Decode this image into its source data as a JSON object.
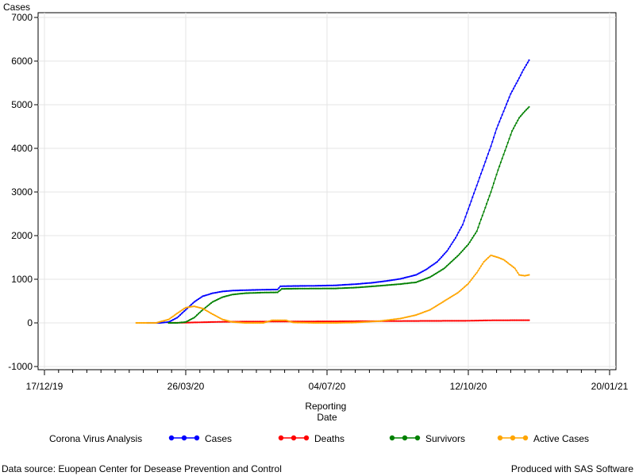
{
  "chart_data": {
    "type": "line",
    "ylabel": "Cases",
    "xlabel_lines": [
      "Reporting",
      "Date"
    ],
    "ylim": [
      -1000,
      7000
    ],
    "y_ticks": [
      -1000,
      0,
      1000,
      2000,
      3000,
      4000,
      5000,
      6000,
      7000
    ],
    "x_range": [
      "2019-12-17",
      "2021-01-20"
    ],
    "x_ticks": [
      {
        "date": "2019-12-17",
        "label": "17/12/19"
      },
      {
        "date": "2020-03-26",
        "label": "26/03/20"
      },
      {
        "date": "2020-07-04",
        "label": "04/07/20"
      },
      {
        "date": "2020-10-12",
        "label": "12/10/20"
      },
      {
        "date": "2021-01-20",
        "label": "20/01/21"
      }
    ],
    "grid": true,
    "legend_position": "bottom",
    "legend_title": "Corona Virus Analysis",
    "series": [
      {
        "name": "Cases",
        "color": "#0000ff",
        "points": [
          [
            "2020-02-28",
            0
          ],
          [
            "2020-03-08",
            0
          ],
          [
            "2020-03-14",
            20
          ],
          [
            "2020-03-20",
            120
          ],
          [
            "2020-03-26",
            300
          ],
          [
            "2020-04-01",
            480
          ],
          [
            "2020-04-07",
            610
          ],
          [
            "2020-04-14",
            680
          ],
          [
            "2020-04-21",
            720
          ],
          [
            "2020-04-28",
            740
          ],
          [
            "2020-05-07",
            750
          ],
          [
            "2020-05-20",
            760
          ],
          [
            "2020-05-30",
            765
          ],
          [
            "2020-06-01",
            840
          ],
          [
            "2020-06-10",
            845
          ],
          [
            "2020-06-25",
            850
          ],
          [
            "2020-07-10",
            860
          ],
          [
            "2020-07-25",
            890
          ],
          [
            "2020-08-05",
            920
          ],
          [
            "2020-08-15",
            960
          ],
          [
            "2020-08-25",
            1010
          ],
          [
            "2020-09-05",
            1100
          ],
          [
            "2020-09-12",
            1220
          ],
          [
            "2020-09-20",
            1400
          ],
          [
            "2020-09-27",
            1650
          ],
          [
            "2020-10-03",
            1950
          ],
          [
            "2020-10-08",
            2250
          ],
          [
            "2020-10-13",
            2700
          ],
          [
            "2020-10-18",
            3150
          ],
          [
            "2020-10-23",
            3600
          ],
          [
            "2020-10-28",
            4050
          ],
          [
            "2020-11-01",
            4450
          ],
          [
            "2020-11-06",
            4850
          ],
          [
            "2020-11-11",
            5250
          ],
          [
            "2020-11-16",
            5550
          ],
          [
            "2020-11-20",
            5800
          ],
          [
            "2020-11-24",
            6020
          ]
        ]
      },
      {
        "name": "Deaths",
        "color": "#ff0000",
        "points": [
          [
            "2020-03-14",
            0
          ],
          [
            "2020-03-26",
            5
          ],
          [
            "2020-04-07",
            15
          ],
          [
            "2020-04-21",
            25
          ],
          [
            "2020-05-10",
            30
          ],
          [
            "2020-06-10",
            32
          ],
          [
            "2020-07-10",
            35
          ],
          [
            "2020-08-10",
            40
          ],
          [
            "2020-09-10",
            45
          ],
          [
            "2020-10-10",
            48
          ],
          [
            "2020-10-30",
            60
          ],
          [
            "2020-11-24",
            62
          ]
        ]
      },
      {
        "name": "Survivors",
        "color": "#008000",
        "points": [
          [
            "2020-03-14",
            0
          ],
          [
            "2020-03-20",
            0
          ],
          [
            "2020-03-26",
            20
          ],
          [
            "2020-04-01",
            120
          ],
          [
            "2020-04-07",
            300
          ],
          [
            "2020-04-14",
            480
          ],
          [
            "2020-04-21",
            590
          ],
          [
            "2020-04-28",
            650
          ],
          [
            "2020-05-07",
            680
          ],
          [
            "2020-05-20",
            695
          ],
          [
            "2020-05-30",
            700
          ],
          [
            "2020-06-02",
            780
          ],
          [
            "2020-06-15",
            785
          ],
          [
            "2020-07-10",
            790
          ],
          [
            "2020-07-25",
            810
          ],
          [
            "2020-08-10",
            850
          ],
          [
            "2020-08-25",
            890
          ],
          [
            "2020-09-05",
            930
          ],
          [
            "2020-09-15",
            1050
          ],
          [
            "2020-09-25",
            1250
          ],
          [
            "2020-10-05",
            1550
          ],
          [
            "2020-10-12",
            1800
          ],
          [
            "2020-10-18",
            2100
          ],
          [
            "2020-10-23",
            2550
          ],
          [
            "2020-10-28",
            3000
          ],
          [
            "2020-11-02",
            3500
          ],
          [
            "2020-11-07",
            3950
          ],
          [
            "2020-11-12",
            4400
          ],
          [
            "2020-11-17",
            4700
          ],
          [
            "2020-11-21",
            4850
          ],
          [
            "2020-11-24",
            4950
          ]
        ]
      },
      {
        "name": "Active Cases",
        "color": "#ffa500",
        "points": [
          [
            "2020-02-20",
            0
          ],
          [
            "2020-03-05",
            0
          ],
          [
            "2020-03-14",
            80
          ],
          [
            "2020-03-20",
            220
          ],
          [
            "2020-03-26",
            350
          ],
          [
            "2020-04-01",
            380
          ],
          [
            "2020-04-07",
            330
          ],
          [
            "2020-04-14",
            200
          ],
          [
            "2020-04-21",
            80
          ],
          [
            "2020-04-28",
            20
          ],
          [
            "2020-05-07",
            0
          ],
          [
            "2020-05-20",
            0
          ],
          [
            "2020-05-26",
            60
          ],
          [
            "2020-06-05",
            60
          ],
          [
            "2020-06-10",
            10
          ],
          [
            "2020-06-25",
            0
          ],
          [
            "2020-07-10",
            0
          ],
          [
            "2020-07-25",
            10
          ],
          [
            "2020-08-10",
            40
          ],
          [
            "2020-08-25",
            100
          ],
          [
            "2020-09-05",
            180
          ],
          [
            "2020-09-15",
            300
          ],
          [
            "2020-09-25",
            500
          ],
          [
            "2020-10-05",
            700
          ],
          [
            "2020-10-12",
            900
          ],
          [
            "2020-10-18",
            1150
          ],
          [
            "2020-10-23",
            1400
          ],
          [
            "2020-10-28",
            1550
          ],
          [
            "2020-11-02",
            1500
          ],
          [
            "2020-11-06",
            1450
          ],
          [
            "2020-11-10",
            1350
          ],
          [
            "2020-11-14",
            1250
          ],
          [
            "2020-11-17",
            1100
          ],
          [
            "2020-11-21",
            1080
          ],
          [
            "2020-11-24",
            1100
          ]
        ]
      }
    ]
  },
  "footnote_left": "Data source: Euopean Center for Desease Prevention and Control",
  "footnote_right": "Produced with SAS Software"
}
